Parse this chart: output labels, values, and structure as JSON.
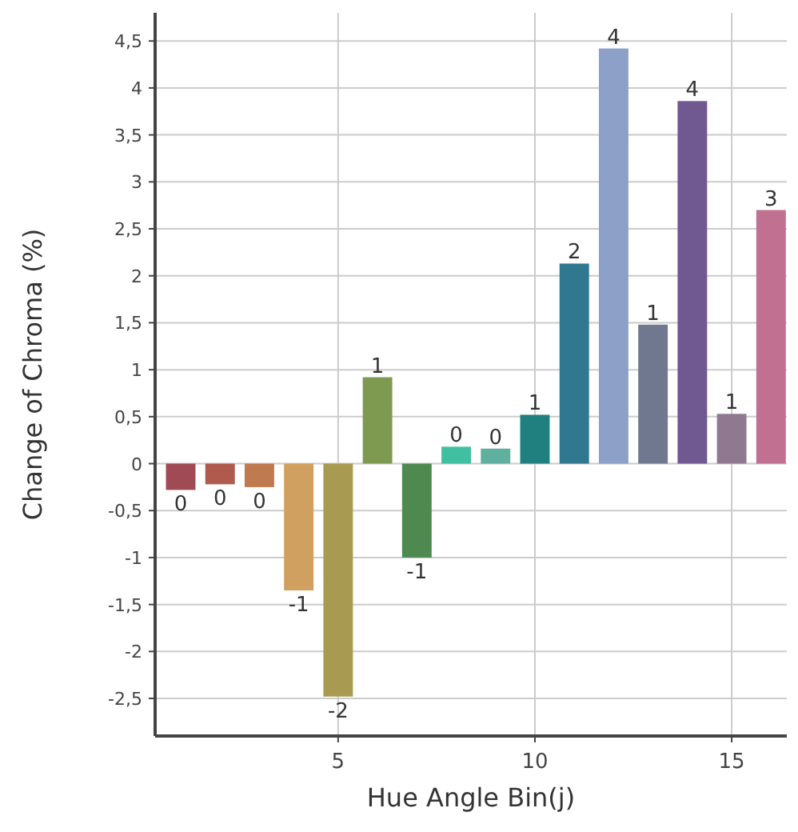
{
  "chart_data": {
    "type": "bar",
    "xlabel": "Hue Angle Bin(j)",
    "ylabel": "Change of Chroma (%)",
    "x": [
      1,
      2,
      3,
      4,
      5,
      6,
      7,
      8,
      9,
      10,
      11,
      12,
      13,
      14,
      15,
      16
    ],
    "values": [
      -0.28,
      -0.22,
      -0.25,
      -1.35,
      -2.48,
      0.92,
      -1.0,
      0.18,
      0.16,
      0.52,
      2.13,
      4.42,
      1.48,
      3.86,
      0.53,
      2.7
    ],
    "colors": [
      "#a04a55",
      "#b05a4e",
      "#c07a50",
      "#d0a060",
      "#a89a50",
      "#7e9a50",
      "#4e8a50",
      "#40c0a0",
      "#60b0a0",
      "#208080",
      "#307890",
      "#8ca0c8",
      "#707890",
      "#705890",
      "#907890",
      "#c07090"
    ],
    "value_labels": [
      "0",
      "0",
      "0",
      "-1",
      "-2",
      "1",
      "-1",
      "0",
      "0",
      "1",
      "2",
      "4",
      "1",
      "4",
      "1",
      "3"
    ],
    "xlim": [
      0.35,
      16.4
    ],
    "xticks": [
      5,
      10,
      15
    ],
    "ylim": [
      -2.9,
      4.8
    ],
    "yticks": [
      {
        "value": -2.5,
        "label": "-2,5"
      },
      -2,
      {
        "value": -1.5,
        "label": "-1,5"
      },
      -1,
      {
        "value": -0.5,
        "label": "-0,5"
      },
      0,
      {
        "value": 0.5,
        "label": "0,5"
      },
      1,
      {
        "value": 1.5,
        "label": "1,5"
      },
      2,
      {
        "value": 2.5,
        "label": "2,5"
      },
      3,
      {
        "value": 3.5,
        "label": "3,5"
      },
      4,
      {
        "value": 4.5,
        "label": "4,5"
      }
    ],
    "grid": true
  }
}
